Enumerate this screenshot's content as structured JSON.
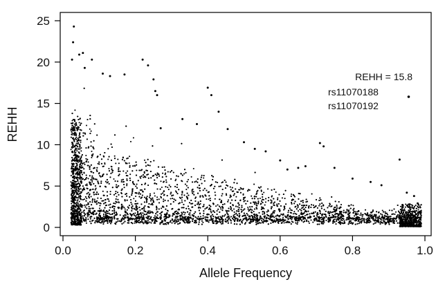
{
  "chart_data": {
    "type": "scatter",
    "title": "",
    "xlabel": "Allele Frequency",
    "ylabel": "REHH",
    "xlim": [
      0.0,
      1.0
    ],
    "ylim": [
      0,
      25
    ],
    "x_ticks": [
      "0.0",
      "0.2",
      "0.4",
      "0.6",
      "0.8",
      "1.0"
    ],
    "y_ticks": [
      "0",
      "5",
      "10",
      "15",
      "20",
      "25"
    ],
    "grid": false,
    "legend": "none",
    "marker_color": "#000000",
    "annotations": {
      "rehh_value": "REHH = 15.8",
      "snp_1": "rs11070188",
      "snp_2": "rs11070192"
    },
    "highlighted_point": {
      "x": 0.955,
      "y": 15.8
    },
    "notable_points": [
      {
        "x": 0.03,
        "y": 24.3
      },
      {
        "x": 0.028,
        "y": 22.4
      },
      {
        "x": 0.025,
        "y": 20.3
      },
      {
        "x": 0.045,
        "y": 20.9
      },
      {
        "x": 0.055,
        "y": 21.1
      },
      {
        "x": 0.08,
        "y": 20.3
      },
      {
        "x": 0.06,
        "y": 19.3
      },
      {
        "x": 0.11,
        "y": 18.6
      },
      {
        "x": 0.13,
        "y": 18.3
      },
      {
        "x": 0.17,
        "y": 18.5
      },
      {
        "x": 0.22,
        "y": 20.3
      },
      {
        "x": 0.235,
        "y": 19.6
      },
      {
        "x": 0.25,
        "y": 17.9
      },
      {
        "x": 0.255,
        "y": 16.5
      },
      {
        "x": 0.26,
        "y": 16.0
      },
      {
        "x": 0.27,
        "y": 12.0
      },
      {
        "x": 0.33,
        "y": 13.1
      },
      {
        "x": 0.37,
        "y": 12.5
      },
      {
        "x": 0.4,
        "y": 16.9
      },
      {
        "x": 0.41,
        "y": 16.0
      },
      {
        "x": 0.43,
        "y": 14.0
      },
      {
        "x": 0.455,
        "y": 11.9
      },
      {
        "x": 0.5,
        "y": 10.3
      },
      {
        "x": 0.53,
        "y": 9.5
      },
      {
        "x": 0.56,
        "y": 9.2
      },
      {
        "x": 0.6,
        "y": 8.1
      },
      {
        "x": 0.62,
        "y": 7.0
      },
      {
        "x": 0.65,
        "y": 7.2
      },
      {
        "x": 0.67,
        "y": 7.4
      },
      {
        "x": 0.71,
        "y": 10.2
      },
      {
        "x": 0.72,
        "y": 9.8
      },
      {
        "x": 0.75,
        "y": 7.2
      },
      {
        "x": 0.8,
        "y": 5.9
      },
      {
        "x": 0.85,
        "y": 5.5
      },
      {
        "x": 0.88,
        "y": 5.1
      },
      {
        "x": 0.93,
        "y": 8.2
      },
      {
        "x": 0.95,
        "y": 4.2
      },
      {
        "x": 0.97,
        "y": 3.8
      },
      {
        "x": 0.98,
        "y": 2.9
      }
    ]
  }
}
